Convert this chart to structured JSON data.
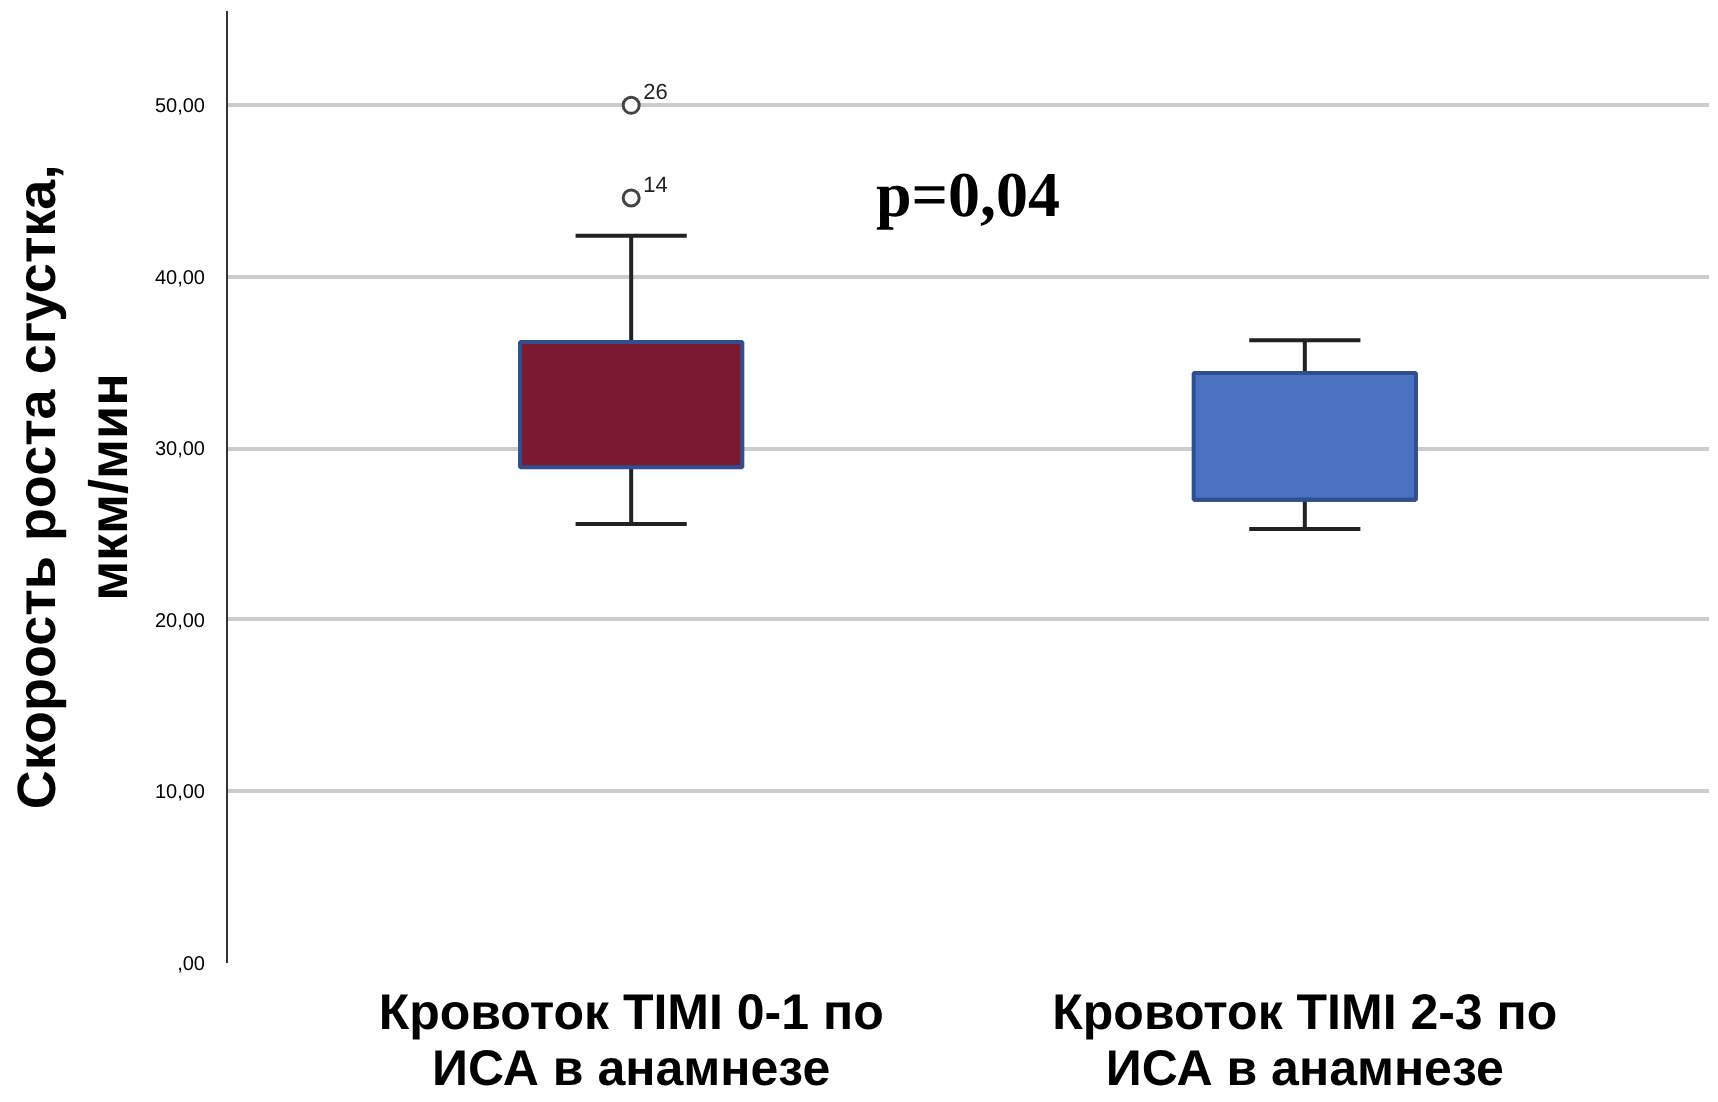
{
  "chart_data": {
    "type": "box",
    "ylabel": "Скорость роста сгустка,\nмкм/мин",
    "categories": [
      "Кровоток TIMI 0-1 по\nИСА в анамнезе",
      "Кровоток TIMI 2-3 по\nИСА в анамнезе"
    ],
    "colors": [
      "#7a1a30",
      "#4a72c0"
    ],
    "boxes": [
      {
        "low": 25.6,
        "q1": 28.9,
        "median": 36.2,
        "q3": 36.2,
        "high": 42.4,
        "outliers": [
          50.0,
          44.6
        ]
      },
      {
        "low": 25.3,
        "q1": 27.0,
        "median": 27.0,
        "q3": 34.4,
        "high": 36.3
      }
    ],
    "ylim": [
      0,
      55.5
    ],
    "yticks": [
      {
        "value": 0,
        "label": ",00"
      },
      {
        "value": 10,
        "label": "10,00"
      },
      {
        "value": 20,
        "label": "20,00"
      },
      {
        "value": 30,
        "label": "30,00"
      },
      {
        "value": 40,
        "label": "40,00"
      },
      {
        "value": 50,
        "label": "50,00"
      }
    ],
    "grid": "y",
    "marker": "circle",
    "annotations": [
      "26",
      "14",
      "p=0,04"
    ]
  }
}
